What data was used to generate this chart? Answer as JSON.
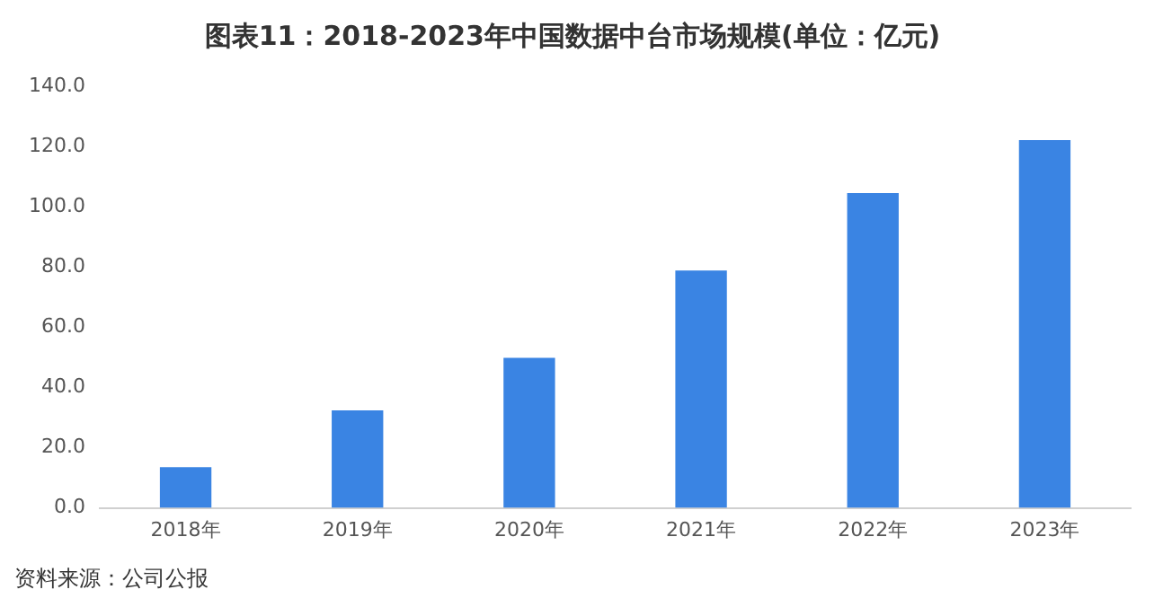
{
  "chart_data": {
    "type": "bar",
    "title": "图表11：2018-2023年中国数据中台市场规模(单位：亿元)",
    "categories": [
      "2018年",
      "2019年",
      "2020年",
      "2021年",
      "2022年",
      "2023年"
    ],
    "values": [
      13.5,
      32.4,
      49.8,
      78.8,
      104.5,
      122.1
    ],
    "color": "#3a84e3",
    "ylim": [
      0,
      140
    ],
    "yticks": [
      {
        "value": 0,
        "label": "0.0"
      },
      {
        "value": 20,
        "label": "20.0"
      },
      {
        "value": 40,
        "label": "40.0"
      },
      {
        "value": 60,
        "label": "60.0"
      },
      {
        "value": 80,
        "label": "80.0"
      },
      {
        "value": 100,
        "label": "100.0"
      },
      {
        "value": 120,
        "label": "120.0"
      },
      {
        "value": 140,
        "label": "140.0"
      }
    ],
    "grid": false,
    "legend": false,
    "annotations": [
      "资料来源：公司公报"
    ]
  }
}
